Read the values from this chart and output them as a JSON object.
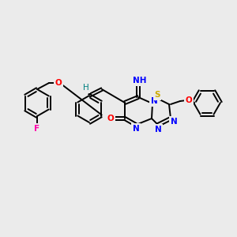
{
  "bg_color": "#ebebeb",
  "atom_colors": {
    "N": "#0000ff",
    "O": "#ff0000",
    "S": "#ccaa00",
    "F": "#ff00aa",
    "H_label": "#008080"
  },
  "bond_color": "#000000",
  "figsize": [
    3.0,
    3.0
  ],
  "dpi": 100,
  "scale": 1.0
}
